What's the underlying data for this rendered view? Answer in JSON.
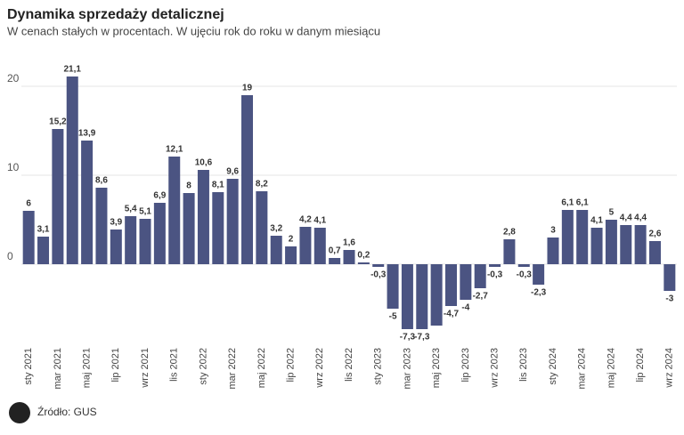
{
  "chart_data": {
    "type": "bar",
    "title": "Dynamika sprzedaży detalicznej",
    "subtitle": "W cenach stałych w procentach. W ujęciu rok do roku w danym miesiącu",
    "source": "Źródło: GUS",
    "categories": [
      "sty 2021",
      null,
      "mar 2021",
      null,
      "maj 2021",
      null,
      "lip 2021",
      null,
      "wrz 2021",
      null,
      "lis 2021",
      null,
      "sty 2022",
      null,
      "mar 2022",
      null,
      "maj 2022",
      null,
      "lip 2022",
      null,
      "wrz 2022",
      null,
      "lis 2022",
      null,
      "sty 2023",
      null,
      "mar 2023",
      null,
      "maj 2023",
      null,
      "lip 2023",
      null,
      "wrz 2023",
      null,
      "lis 2023",
      null,
      "sty 2024",
      null,
      "mar 2024",
      null,
      "maj 2024",
      null,
      "lip 2024",
      null,
      "wrz 2024"
    ],
    "values": [
      6,
      3.1,
      15.2,
      21.1,
      13.9,
      8.6,
      3.9,
      5.4,
      5.1,
      6.9,
      12.1,
      8,
      10.6,
      8.1,
      9.6,
      19,
      8.2,
      3.2,
      2,
      4.2,
      4.1,
      0.7,
      1.6,
      0.2,
      -0.3,
      -5,
      -7.3,
      -7.3,
      -6.9,
      -4.7,
      -4,
      -2.7,
      -0.3,
      2.8,
      -0.3,
      -2.3,
      3,
      6.1,
      6.1,
      4.1,
      5,
      4.4,
      4.4,
      2.6,
      -3
    ],
    "value_labels": [
      "6",
      "3,1",
      "15,2",
      "21,1",
      "13,9",
      "8,6",
      "3,9",
      "5,4",
      "5,1",
      "6,9",
      "12,1",
      "8",
      "10,6",
      "8,1",
      "9,6",
      "19",
      "8,2",
      "3,2",
      "2",
      "4,2",
      "4,1",
      "0,7",
      "1,6",
      "0,2",
      "-0,3",
      "-5",
      "-7,3",
      "-7,3",
      null,
      "-4,7",
      "-4",
      "-2,7",
      "-0,3",
      "2,8",
      "-0,3",
      "-2,3",
      "3",
      "6,1",
      "6,1",
      "4,1",
      "5",
      "4,4",
      "4,4",
      "2,6",
      "-3"
    ],
    "color": "#4b5482",
    "ylim": [
      -9,
      22.5
    ],
    "yticks": [
      0,
      10,
      20
    ],
    "grid": true
  }
}
